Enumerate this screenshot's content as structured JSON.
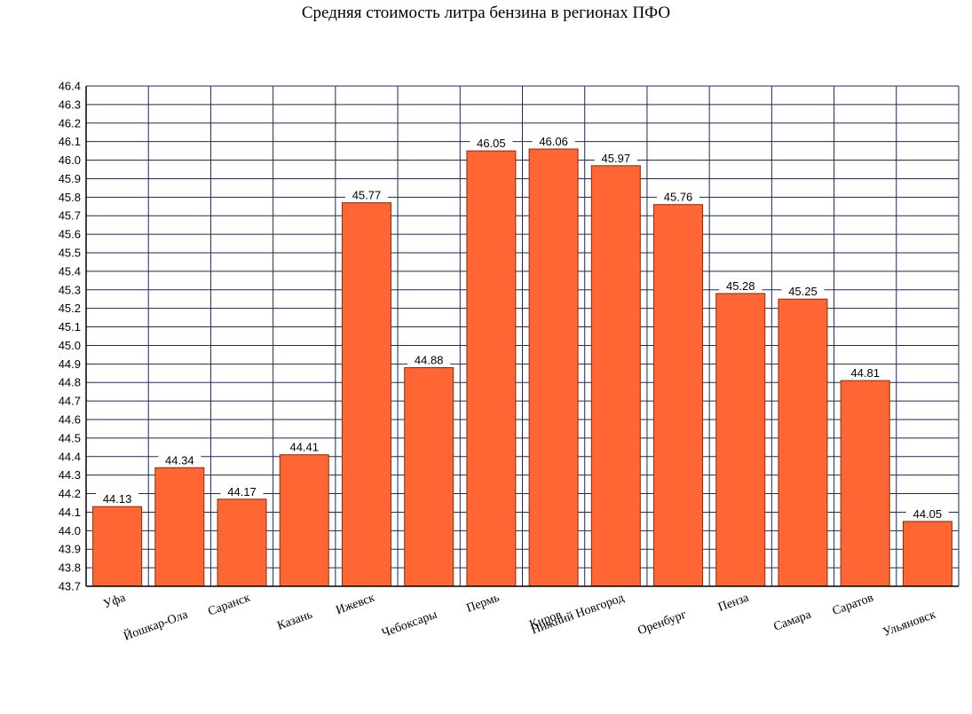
{
  "colors": {
    "bar_fill": "#ff6633",
    "bar_stroke": "#8b2a0a",
    "grid": "#1a2a5a",
    "axis": "#000000",
    "background": "#ffffff"
  },
  "chart_data": {
    "type": "bar",
    "title": "Средняя стоимость литра бензина в регионах ПФО",
    "xlabel": "",
    "ylabel": "",
    "ylim": [
      43.7,
      46.4
    ],
    "grid": true,
    "legend": "none",
    "y_ticks": [
      "43.7",
      "43.8",
      "43.9",
      "44.0",
      "44.1",
      "44.2",
      "44.3",
      "44.4",
      "44.5",
      "44.6",
      "44.7",
      "44.8",
      "44.9",
      "45.0",
      "45.1",
      "45.2",
      "45.3",
      "45.4",
      "45.5",
      "45.6",
      "45.7",
      "45.8",
      "45.9",
      "46.0",
      "46.1",
      "46.2",
      "46.3",
      "46.4"
    ],
    "categories": [
      "Уфа",
      "Йошкар-Ола",
      "Саранск",
      "Казань",
      "Ижевск",
      "Чебоксары",
      "Пермь",
      "Киров",
      "Нижний Новгород",
      "Оренбург",
      "Пенза",
      "Самара",
      "Саратов",
      "Ульяновск"
    ],
    "values": [
      44.13,
      44.34,
      44.17,
      44.41,
      45.77,
      44.88,
      46.05,
      46.06,
      45.97,
      45.76,
      45.28,
      45.25,
      44.81,
      44.05
    ],
    "value_labels": [
      "44.13",
      "44.34",
      "44.17",
      "44.41",
      "45.77",
      "44.88",
      "46.05",
      "46.06",
      "45.97",
      "45.76",
      "45.28",
      "45.25",
      "44.81",
      "44.05"
    ]
  }
}
